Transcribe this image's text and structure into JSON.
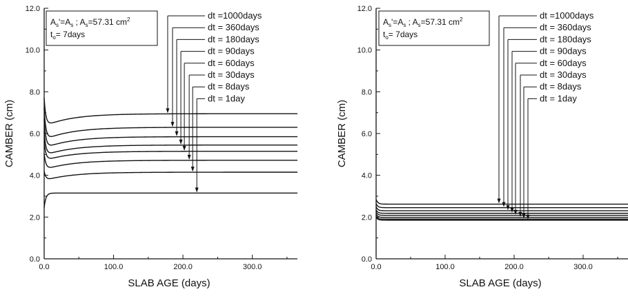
{
  "chart_data": [
    {
      "type": "line",
      "xlabel": "SLAB AGE (days)",
      "ylabel": "CAMBER (cm)",
      "xlim": [
        0,
        365
      ],
      "ylim": [
        0,
        12
      ],
      "x_ticks": [
        "0.0",
        "100.0",
        "200.0",
        "300.0"
      ],
      "y_ticks": [
        "0.0",
        "2.0",
        "4.0",
        "6.0",
        "8.0",
        "10.0",
        "12.0"
      ],
      "grid": false,
      "note": {
        "line1_parts": [
          "A",
          "s",
          "'=A",
          "s",
          " ; A",
          "s",
          "=57.31 cm",
          "2"
        ],
        "line2_parts": [
          "t",
          "o",
          "= 7days"
        ]
      },
      "legend_labels": [
        "dt =1000days",
        "dt = 360days",
        "dt = 180days",
        "dt =  90days",
        "dt =  60days",
        "dt =  30days",
        "dt =    8days",
        "dt =      1day"
      ],
      "series": [
        {
          "dt": 1000,
          "start": 7.7,
          "final": 6.95,
          "dip": 0.6,
          "arrow_x": 178
        },
        {
          "dt": 360,
          "start": 7.2,
          "final": 6.3,
          "dip": 0.6,
          "arrow_x": 185
        },
        {
          "dt": 180,
          "start": 6.7,
          "final": 5.85,
          "dip": 0.55,
          "arrow_x": 191
        },
        {
          "dt": 90,
          "start": 6.1,
          "final": 5.45,
          "dip": 0.5,
          "arrow_x": 197
        },
        {
          "dt": 60,
          "start": 5.65,
          "final": 5.15,
          "dip": 0.45,
          "arrow_x": 202
        },
        {
          "dt": 30,
          "start": 5.05,
          "final": 4.72,
          "dip": 0.45,
          "arrow_x": 209
        },
        {
          "dt": 8,
          "start": 4.2,
          "final": 4.15,
          "dip": 0.4,
          "arrow_x": 214
        },
        {
          "dt": 1,
          "start": 2.45,
          "final": 3.15,
          "dip": 0.0,
          "arrow_x": 220
        }
      ]
    },
    {
      "type": "line",
      "xlabel": "SLAB AGE (days)",
      "ylabel": "CAMBER (cm)",
      "xlim": [
        0,
        365
      ],
      "ylim": [
        0,
        12
      ],
      "x_ticks": [
        "0.0",
        "100.0",
        "200.0",
        "300.0"
      ],
      "y_ticks": [
        "0.0",
        "2.0",
        "4.0",
        "6.0",
        "8.0",
        "10.0",
        "12.0"
      ],
      "grid": false,
      "note": {
        "line1_parts": [
          "A",
          "s",
          "'=A",
          "s",
          " ; A",
          "s",
          "=57.31 cm",
          "2"
        ],
        "line2_parts": [
          "t",
          "o",
          "= 7days"
        ]
      },
      "legend_labels": [
        "dt =1000days",
        "dt = 360days",
        "dt = 180days",
        "dt =  90days",
        "dt =  60days",
        "dt =  30days",
        "dt =    8days",
        "dt =      1day"
      ],
      "series": [
        {
          "dt": 1000,
          "start": 2.85,
          "final": 2.62,
          "dip": 0.0,
          "arrow_x": 178
        },
        {
          "dt": 360,
          "start": 2.65,
          "final": 2.45,
          "dip": 0.0,
          "arrow_x": 185
        },
        {
          "dt": 180,
          "start": 2.5,
          "final": 2.3,
          "dip": 0.0,
          "arrow_x": 191
        },
        {
          "dt": 90,
          "start": 2.35,
          "final": 2.18,
          "dip": 0.0,
          "arrow_x": 197
        },
        {
          "dt": 60,
          "start": 2.25,
          "final": 2.08,
          "dip": 0.0,
          "arrow_x": 202
        },
        {
          "dt": 30,
          "start": 2.15,
          "final": 1.98,
          "dip": 0.0,
          "arrow_x": 209
        },
        {
          "dt": 8,
          "start": 2.05,
          "final": 1.9,
          "dip": 0.0,
          "arrow_x": 214
        },
        {
          "dt": 1,
          "start": 1.98,
          "final": 1.85,
          "dip": 0.0,
          "arrow_x": 220
        }
      ]
    }
  ]
}
